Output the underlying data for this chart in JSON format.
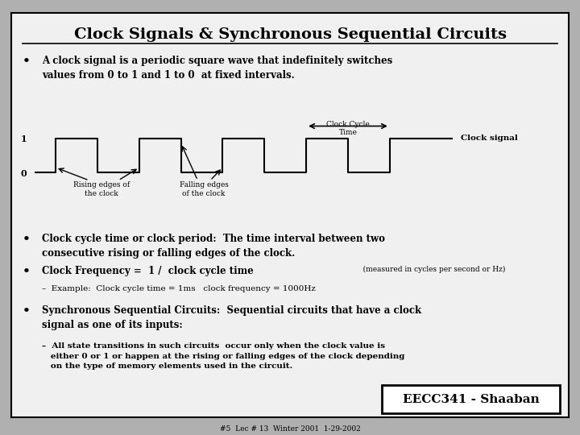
{
  "title": "Clock Signals & Synchronous Sequential Circuits",
  "background_color": "#b0b0b0",
  "slide_bg": "#f0f0f0",
  "border_color": "#000000",
  "bullet1": "A clock signal is a periodic square wave that indefinitely switches\nvalues from 0 to 1 and 1 to 0  at fixed intervals.",
  "bullet2_bold": "Clock cycle time or clock period:  The time interval between two\nconsecutive rising or falling edges of the clock.",
  "bullet3_main": "Clock Frequency =  1 /  clock cycle time",
  "bullet3_small": "    (measured in cycles per second or Hz)",
  "bullet3_sub": "–  Example:  Clock cycle time = 1ms   clock frequency = 1000Hz",
  "bullet4_main": "Synchronous Sequential Circuits:  Sequential circuits that have a clock\nsignal as one of its inputs:",
  "bullet4_sub": "–  All state transitions in such circuits  occur only when the clock value is\n   either 0 or 1 or happen at the rising or falling edges of the clock depending\n   on the type of memory elements used in the circuit.",
  "footer_box": "EECC341 - Shaaban",
  "footer_small": "#5  Lec # 13  Winter 2001  1-29-2002",
  "clock_label": "Clock signal",
  "rising_label": "Rising edges of\nthe clock",
  "falling_label": "Falling edges\nof the clock",
  "cycle_label": "Clock Cycle\nTime"
}
